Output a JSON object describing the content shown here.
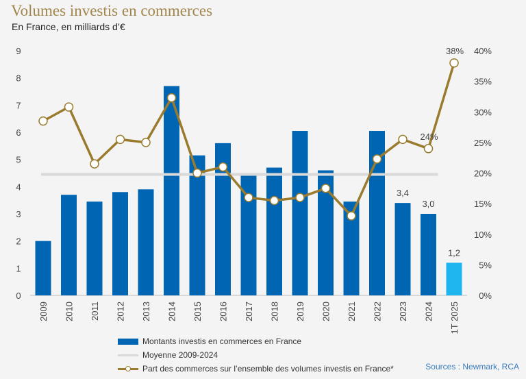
{
  "header": {
    "title": "Volumes investis en commerces",
    "subtitle": "En France, en milliards d’€"
  },
  "legend": {
    "bars": "Montants investis en commerces en France",
    "average": "Moyenne 2009-2024",
    "line": "Part des commerces sur l’ensemble des volumes investis en France*"
  },
  "source": "Sources : Newmark, RCA",
  "colors": {
    "bar": "#0066b3",
    "bar_highlight": "#1fb6f0",
    "line": "#9a7b2e",
    "average": "#d9d9d9"
  },
  "chart_data": {
    "type": "bar",
    "categories": [
      "2009",
      "2010",
      "2011",
      "2012",
      "2013",
      "2014",
      "2015",
      "2016",
      "2017",
      "2018",
      "2019",
      "2020",
      "2021",
      "2022",
      "2023",
      "2024",
      "1T 2025"
    ],
    "series": [
      {
        "name": "Montants investis en commerces en France",
        "axis": "left",
        "type": "bar",
        "values": [
          2.0,
          3.7,
          3.45,
          3.8,
          3.9,
          7.7,
          5.15,
          5.6,
          4.4,
          4.7,
          6.05,
          4.6,
          3.45,
          6.05,
          3.4,
          3.0,
          1.2
        ]
      },
      {
        "name": "Part des commerces sur l’ensemble des volumes investis en France*",
        "axis": "right",
        "type": "line",
        "values": [
          28.5,
          30.8,
          21.5,
          25.5,
          25.0,
          32.3,
          20.0,
          21.0,
          16.0,
          15.5,
          16.0,
          17.5,
          13.0,
          22.3,
          25.5,
          24.0,
          38.0
        ]
      }
    ],
    "average": {
      "name": "Moyenne 2009-2024",
      "value": 4.45
    },
    "data_labels": {
      "bars": [
        {
          "index": 14,
          "text": "3,4"
        },
        {
          "index": 15,
          "text": "3,0"
        },
        {
          "index": 16,
          "text": "1,2"
        }
      ],
      "line": [
        {
          "index": 15,
          "text": "24%"
        },
        {
          "index": 16,
          "text": "38%"
        }
      ]
    },
    "y_left": {
      "min": 0,
      "max": 9,
      "ticks": [
        "0",
        "1",
        "2",
        "3",
        "4",
        "5",
        "6",
        "7",
        "8",
        "9"
      ]
    },
    "y_right": {
      "min": 0,
      "max": 40,
      "ticks": [
        "0%",
        "5%",
        "10%",
        "15%",
        "20%",
        "25%",
        "30%",
        "35%",
        "40%"
      ]
    },
    "highlight_index": 16,
    "grid": false,
    "legend_position": "bottom"
  }
}
